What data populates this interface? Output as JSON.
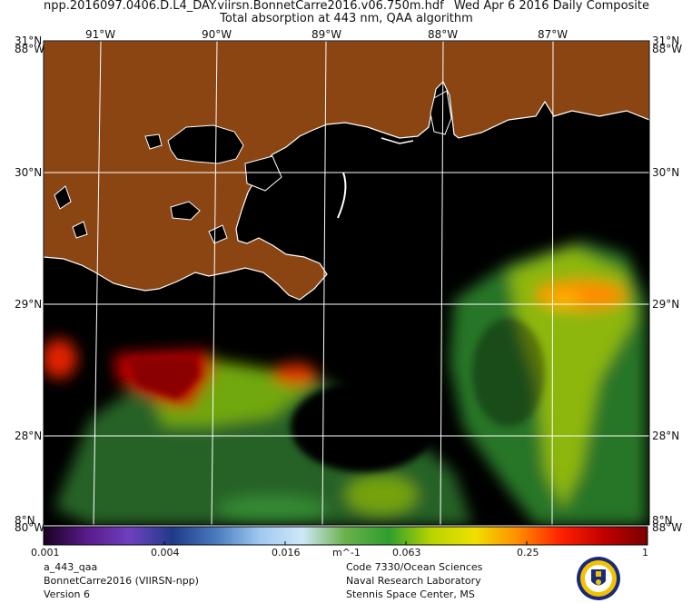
{
  "header": {
    "filename": "npp.2016097.0406.D.L4_DAY.viirsn.BonnetCarre2016.v06.750m.hdf",
    "date": "Wed Apr  6 2016 Daily Composite",
    "subtitle": "Total absorption at 443 nm, QAA algorithm"
  },
  "map": {
    "lon_ticks": [
      "91°W",
      "90°W",
      "89°W",
      "88°W",
      "87°W"
    ],
    "lat_ticks_left": [
      "31°N",
      "30°N",
      "29°N",
      "28°N",
      "8°N"
    ],
    "lat_ticks_right": [
      "31°N",
      "30°N",
      "29°N",
      "28°N",
      "8°N"
    ],
    "corner_top_left": "88°W",
    "corner_top_right": "88°W",
    "corner_bottom_left": "80°W",
    "corner_bottom_right": "88°W",
    "colors": {
      "land": "#8b4513",
      "no_data": "#000000",
      "coastline": "#ffffff",
      "grid": "#ffffff"
    },
    "features": [
      "Louisiana coast",
      "Lake Pontchartrain",
      "Mississippi River plume",
      "Mobile Bay",
      "Chandeleur Islands"
    ]
  },
  "colorbar": {
    "scale": "log",
    "min": 0.001,
    "max": 1,
    "tick_labels": [
      "0.001",
      "0.004",
      "0.016",
      "0.063",
      "0.25",
      "1"
    ],
    "unit": "m^-1",
    "palette": [
      "#1a0020",
      "#5a1a8a",
      "#6e40c0",
      "#203a8a",
      "#4a7abf",
      "#9ec8f0",
      "#cfe8f8",
      "#6ab04a",
      "#2e9e2e",
      "#b8d400",
      "#f0e000",
      "#ff8c00",
      "#ff2000",
      "#c00000",
      "#7a0000"
    ]
  },
  "footer": {
    "left": [
      "a_443_qaa",
      "BonnetCarre2016 (VIIRSN-npp)",
      "Version 6"
    ],
    "right": [
      "Code 7330/Ocean Sciences",
      "Naval Research Laboratory",
      "Stennis Space Center, MS"
    ]
  },
  "logo": {
    "name": "nrl-seal-icon"
  }
}
